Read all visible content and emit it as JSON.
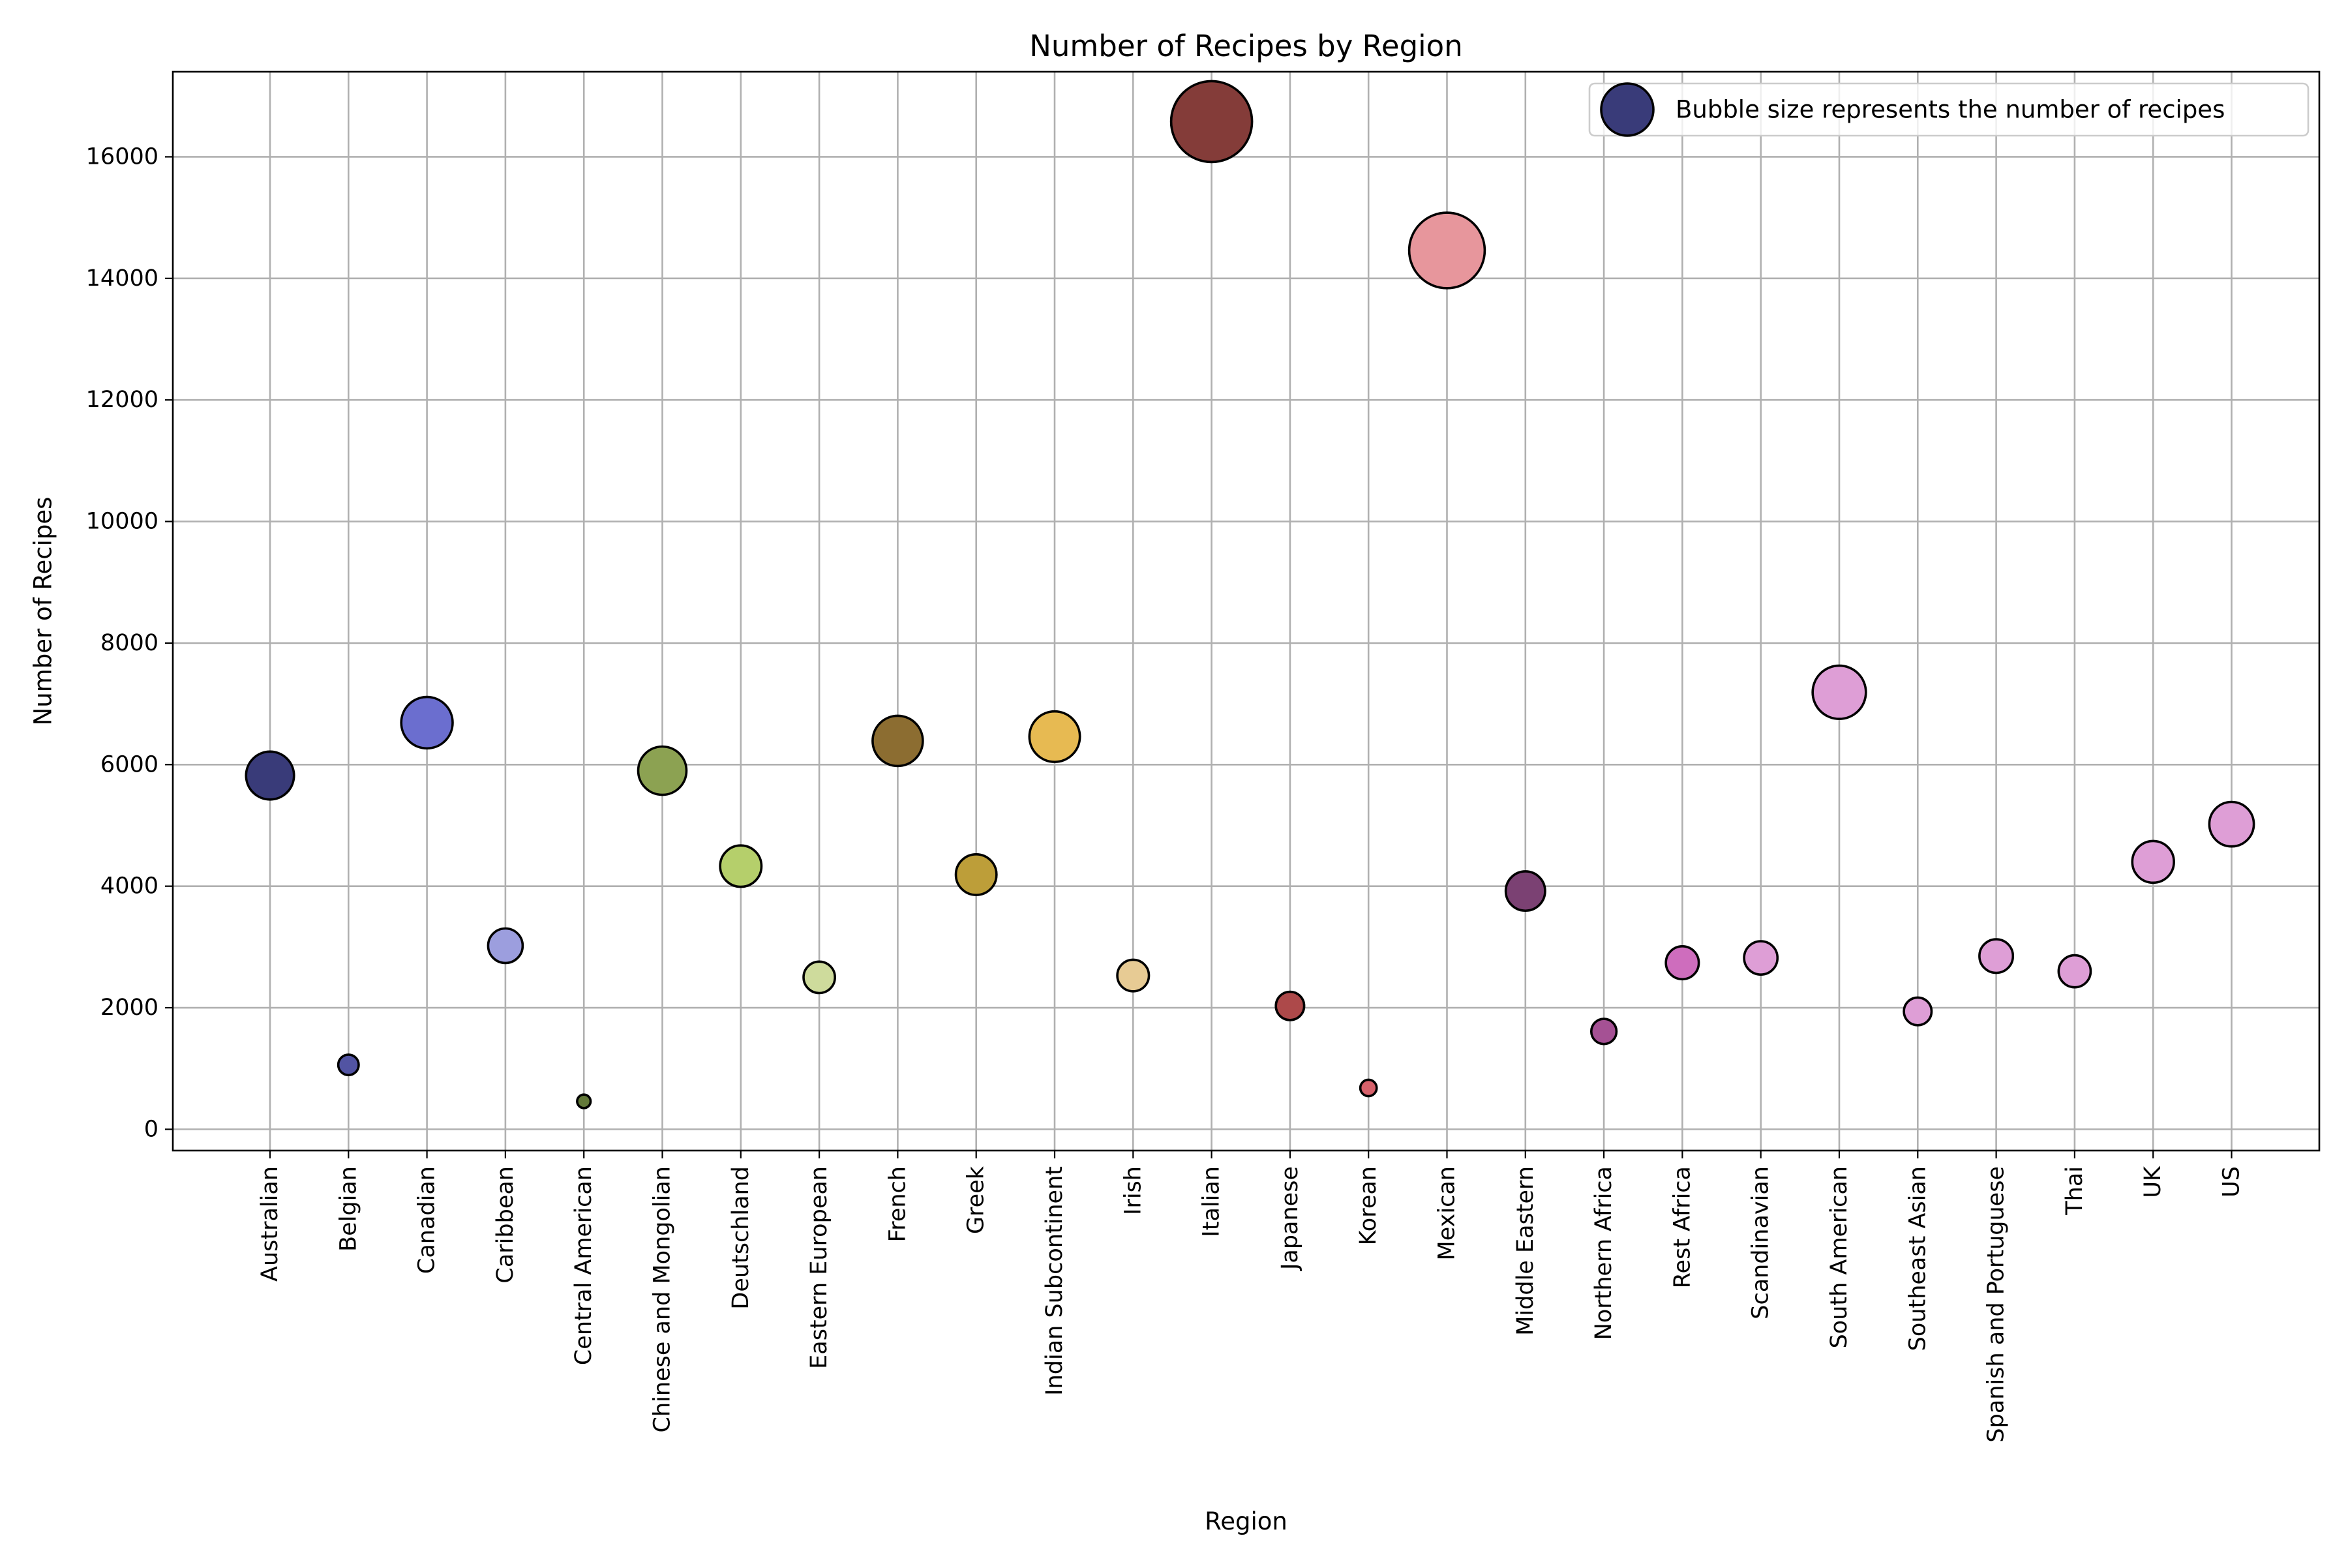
{
  "chart_data": {
    "type": "scatter",
    "title": "Number of Recipes by Region",
    "xlabel": "Region",
    "ylabel": "Number of Recipes",
    "ylim": [
      -350,
      17400
    ],
    "yticks": [
      0,
      2000,
      4000,
      6000,
      8000,
      10000,
      12000,
      14000,
      16000
    ],
    "grid": true,
    "legend": {
      "position": "top-right",
      "label": "Bubble size represents the number of recipes",
      "marker_color": "#393b79"
    },
    "bubble_size_encodes": "Number of Recipes",
    "categories": [
      "Australian",
      "Belgian",
      "Canadian",
      "Caribbean",
      "Central American",
      "Chinese and Mongolian",
      "Deutschland",
      "Eastern European",
      "French",
      "Greek",
      "Indian Subcontinent",
      "Irish",
      "Italian",
      "Japanese",
      "Korean",
      "Mexican",
      "Middle Eastern",
      "Northern Africa",
      "Rest Africa",
      "Scandinavian",
      "South American",
      "Southeast Asian",
      "Spanish and Portuguese",
      "Thai",
      "UK",
      "US"
    ],
    "values": [
      5820,
      1060,
      6690,
      3020,
      460,
      5900,
      4330,
      2500,
      6390,
      4190,
      6460,
      2530,
      16580,
      2030,
      680,
      14460,
      3920,
      1610,
      2740,
      2820,
      7190,
      1940,
      2850,
      2600,
      4400,
      5020
    ],
    "colors": [
      "#393b79",
      "#5254a3",
      "#6b6ecf",
      "#9c9ede",
      "#637939",
      "#8ca252",
      "#b5cf6b",
      "#cedb9c",
      "#8c6d31",
      "#bd9e39",
      "#e7ba52",
      "#e7cb94",
      "#843c39",
      "#ad494a",
      "#d6616b",
      "#e7969c",
      "#7b4173",
      "#a55194",
      "#ce6dbd",
      "#de9ed6",
      "#de9ed6",
      "#de9ed6",
      "#de9ed6",
      "#de9ed6",
      "#de9ed6",
      "#de9ed6"
    ]
  }
}
